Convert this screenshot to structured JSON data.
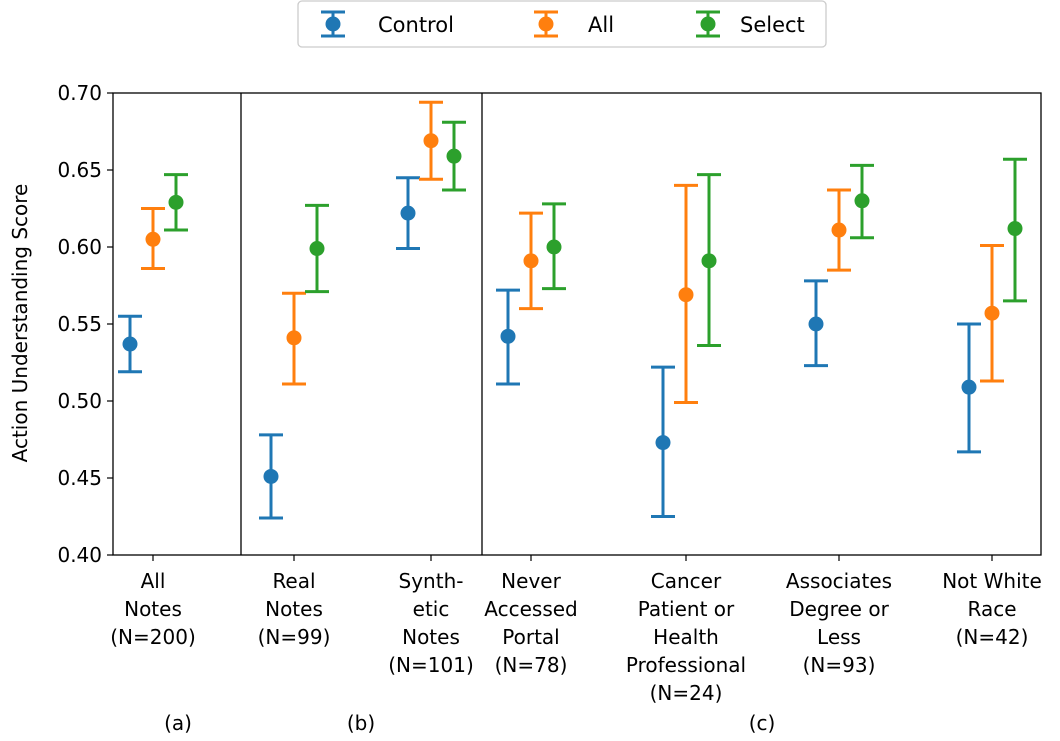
{
  "chart_data": {
    "type": "scatter",
    "ylabel": "Action Understanding Score",
    "ylim": [
      0.4,
      0.7
    ],
    "yticks": [
      0.4,
      0.45,
      0.5,
      0.55,
      0.6,
      0.65,
      0.7
    ],
    "ytick_labels": [
      "0.40",
      "0.45",
      "0.50",
      "0.55",
      "0.60",
      "0.65",
      "0.70"
    ],
    "legend_position": "top-center",
    "categories": [
      {
        "id": "all-notes",
        "lines": [
          "All",
          "Notes",
          "(N=200)"
        ]
      },
      {
        "id": "real-notes",
        "lines": [
          "Real",
          "Notes",
          "(N=99)"
        ]
      },
      {
        "id": "synthetic-notes",
        "lines": [
          "Synth-",
          "etic",
          "Notes",
          "(N=101)"
        ]
      },
      {
        "id": "never-accessed-portal",
        "lines": [
          "Never",
          "Accessed",
          "Portal",
          "(N=78)"
        ]
      },
      {
        "id": "cancer-patient-or-health-professional",
        "lines": [
          "Cancer",
          "Patient or",
          "Health",
          "Professional",
          "(N=24)"
        ]
      },
      {
        "id": "associates-degree-or-less",
        "lines": [
          "Associates",
          "Degree or",
          "Less",
          "(N=93)"
        ]
      },
      {
        "id": "not-white-race",
        "lines": [
          "Not White",
          "Race",
          "(N=42)"
        ]
      }
    ],
    "group_labels": [
      "(a)",
      "(b)",
      "(c)"
    ],
    "series": [
      {
        "name": "Control",
        "color": "#1f77b4",
        "values": [
          0.537,
          0.451,
          0.622,
          0.542,
          0.473,
          0.55,
          0.509
        ],
        "lower": [
          0.519,
          0.424,
          0.599,
          0.511,
          0.425,
          0.523,
          0.467
        ],
        "upper": [
          0.555,
          0.478,
          0.645,
          0.572,
          0.522,
          0.578,
          0.55
        ]
      },
      {
        "name": "All",
        "color": "#ff7f0e",
        "values": [
          0.605,
          0.541,
          0.669,
          0.591,
          0.569,
          0.611,
          0.557
        ],
        "lower": [
          0.586,
          0.511,
          0.644,
          0.56,
          0.499,
          0.585,
          0.513
        ],
        "upper": [
          0.625,
          0.57,
          0.694,
          0.622,
          0.64,
          0.637,
          0.601
        ]
      },
      {
        "name": "Select",
        "color": "#2ca02c",
        "values": [
          0.629,
          0.599,
          0.659,
          0.6,
          0.591,
          0.63,
          0.612
        ],
        "lower": [
          0.611,
          0.571,
          0.637,
          0.573,
          0.536,
          0.606,
          0.565
        ],
        "upper": [
          0.647,
          0.627,
          0.681,
          0.628,
          0.647,
          0.653,
          0.657
        ]
      }
    ]
  }
}
